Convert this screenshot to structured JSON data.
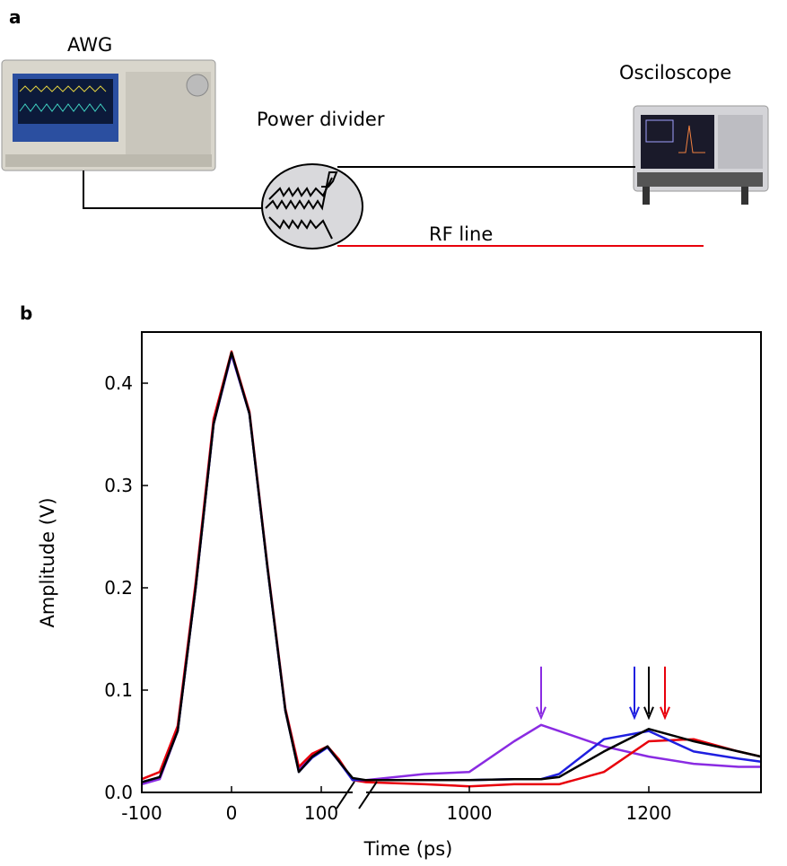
{
  "panel_a": {
    "label": "a",
    "awg_label": "AWG",
    "divider_label": "Power divider",
    "scope_label": "Osciloscope",
    "line_label": "RF line"
  },
  "chart_data": {
    "type": "line",
    "panel_label": "b",
    "x_label": "Time (ps)",
    "y_label": "Amplitude (V)",
    "xlim": [
      -100,
      1325
    ],
    "xbreak": [
      135,
      885
    ],
    "xticks": [
      -100,
      0,
      100,
      1000,
      1200
    ],
    "ylim": [
      0,
      0.45
    ],
    "yticks": [
      {
        "value": 0,
        "label": "0.0"
      },
      0.1,
      0.2,
      0.3,
      0.4
    ],
    "x": [
      -100,
      -80,
      -60,
      -40,
      -20,
      0,
      20,
      40,
      60,
      75,
      90,
      107,
      120,
      135,
      885,
      950,
      1000,
      1050,
      1080,
      1100,
      1150,
      1200,
      1250,
      1300,
      1325
    ],
    "series": [
      {
        "name": "purple",
        "color": "#8a2be2",
        "values": [
          0.008,
          0.013,
          0.06,
          0.2,
          0.36,
          0.428,
          0.37,
          0.22,
          0.08,
          0.022,
          0.036,
          0.044,
          0.03,
          0.012,
          0.012,
          0.018,
          0.02,
          0.05,
          0.066,
          0.06,
          0.045,
          0.035,
          0.028,
          0.025,
          0.025
        ]
      },
      {
        "name": "red",
        "color": "#e8000b",
        "values": [
          0.013,
          0.02,
          0.065,
          0.205,
          0.365,
          0.431,
          0.372,
          0.222,
          0.082,
          0.025,
          0.038,
          0.045,
          0.032,
          0.012,
          0.01,
          0.008,
          0.006,
          0.008,
          0.008,
          0.008,
          0.02,
          0.05,
          0.052,
          0.04,
          0.035
        ]
      },
      {
        "name": "blue",
        "color": "#1f1fe0",
        "values": [
          0.01,
          0.015,
          0.06,
          0.2,
          0.36,
          0.429,
          0.37,
          0.22,
          0.08,
          0.02,
          0.034,
          0.044,
          0.03,
          0.012,
          0.012,
          0.012,
          0.012,
          0.013,
          0.013,
          0.018,
          0.052,
          0.06,
          0.04,
          0.033,
          0.03
        ]
      },
      {
        "name": "black",
        "color": "#000000",
        "values": [
          0.01,
          0.015,
          0.06,
          0.2,
          0.36,
          0.43,
          0.37,
          0.22,
          0.08,
          0.02,
          0.035,
          0.045,
          0.03,
          0.014,
          0.012,
          0.012,
          0.012,
          0.013,
          0.013,
          0.015,
          0.04,
          0.062,
          0.05,
          0.04,
          0.035
        ]
      }
    ],
    "arrows": [
      {
        "x": 1080,
        "color": "#8a2be2"
      },
      {
        "x": 1184,
        "color": "#1f1fe0"
      },
      {
        "x": 1200,
        "color": "#000000"
      },
      {
        "x": 1218,
        "color": "#e8000b"
      }
    ]
  }
}
